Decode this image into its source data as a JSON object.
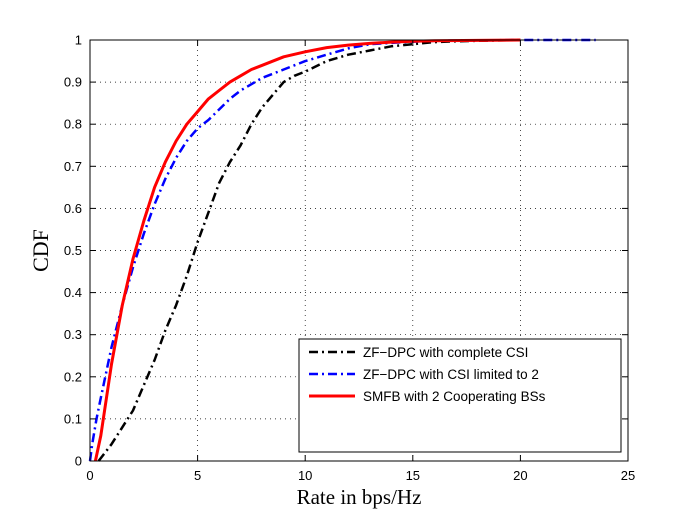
{
  "chart_data": {
    "type": "line",
    "title": "",
    "xlabel": "Rate in bps/Hz",
    "ylabel": "CDF",
    "xlim": [
      0,
      25
    ],
    "ylim": [
      0,
      1
    ],
    "xticks": [
      0,
      5,
      10,
      15,
      20,
      25
    ],
    "yticks": [
      0,
      0.1,
      0.2,
      0.3,
      0.4,
      0.5,
      0.6,
      0.7,
      0.8,
      0.9,
      1
    ],
    "grid": true,
    "legend_position": "bottom-right",
    "series": [
      {
        "name": "ZF−DPC with complete CSI",
        "color": "#000000",
        "dash": "dashdot",
        "x": [
          0.4,
          1.0,
          1.5,
          2.0,
          2.5,
          3.0,
          3.5,
          4.0,
          4.5,
          5.0,
          5.5,
          6.0,
          6.5,
          7.0,
          7.5,
          8.0,
          8.5,
          9.0,
          9.5,
          10.0,
          11.0,
          12.0,
          13.0,
          14.0,
          15.0,
          16.0,
          17.0,
          18.0,
          19.0,
          20.0
        ],
        "y": [
          0,
          0.04,
          0.08,
          0.12,
          0.18,
          0.24,
          0.31,
          0.37,
          0.44,
          0.52,
          0.59,
          0.66,
          0.71,
          0.75,
          0.8,
          0.84,
          0.87,
          0.9,
          0.915,
          0.925,
          0.95,
          0.965,
          0.975,
          0.985,
          0.99,
          0.995,
          0.997,
          0.998,
          0.999,
          1.0
        ]
      },
      {
        "name": "ZF−DPC with CSI limited to 2",
        "color": "#0000ff",
        "dash": "dashdot",
        "x": [
          0,
          0.1,
          0.3,
          0.5,
          1.0,
          1.5,
          2.0,
          2.5,
          3.0,
          3.5,
          4.0,
          4.5,
          5.0,
          5.5,
          6.0,
          6.5,
          7.0,
          7.5,
          8.0,
          9.0,
          10.0,
          11.0,
          12.0,
          13.0,
          14.0,
          15.0,
          16.0,
          18.0,
          20.0,
          22.0,
          23.5
        ],
        "y": [
          0,
          0.04,
          0.1,
          0.15,
          0.27,
          0.37,
          0.46,
          0.54,
          0.61,
          0.67,
          0.72,
          0.76,
          0.79,
          0.81,
          0.835,
          0.86,
          0.88,
          0.895,
          0.91,
          0.93,
          0.95,
          0.965,
          0.98,
          0.99,
          0.993,
          0.996,
          0.998,
          0.999,
          1.0,
          1.0,
          1.0
        ]
      },
      {
        "name": "SMFB with 2 Cooperating BSs",
        "color": "#ff0000",
        "dash": "solid",
        "x": [
          0.25,
          0.5,
          1.0,
          1.5,
          2.0,
          2.5,
          3.0,
          3.5,
          4.0,
          4.5,
          5.0,
          5.5,
          6.0,
          6.5,
          7.0,
          7.5,
          8.0,
          9.0,
          10.0,
          11.0,
          12.0,
          13.0,
          14.0,
          15.0,
          16.0,
          18.0,
          20.0
        ],
        "y": [
          0,
          0.06,
          0.23,
          0.37,
          0.48,
          0.57,
          0.65,
          0.71,
          0.76,
          0.8,
          0.83,
          0.86,
          0.88,
          0.9,
          0.915,
          0.93,
          0.94,
          0.96,
          0.972,
          0.982,
          0.988,
          0.992,
          0.995,
          0.997,
          0.998,
          0.999,
          1.0
        ]
      }
    ]
  }
}
